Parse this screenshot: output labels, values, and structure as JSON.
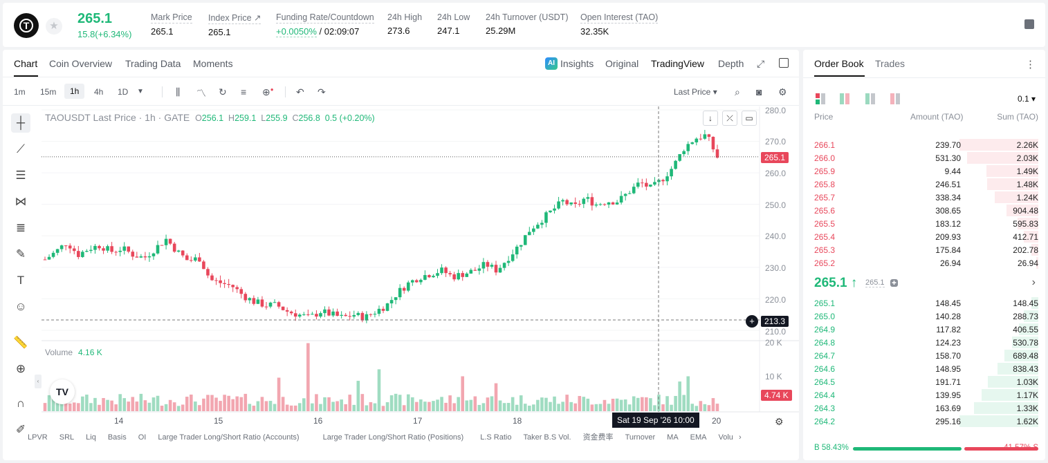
{
  "header": {
    "last_price": "265.1",
    "change": "15.8(+6.34%)",
    "stats": [
      {
        "label": "Mark Price",
        "value": "265.1",
        "x": 214
      },
      {
        "label": "Index Price ↗",
        "value": "265.1",
        "x": 297
      },
      {
        "label": "Funding Rate/Countdown",
        "value": "+0.0050% / 02:09:07",
        "x": 395
      },
      {
        "label": "24h High",
        "value": "273.6",
        "x": 556
      },
      {
        "label": "24h Low",
        "value": "247.1",
        "x": 628
      },
      {
        "label": "24h Turnover (USDT)",
        "value": "25.29M",
        "x": 698
      },
      {
        "label": "Open Interest (TAO)",
        "value": "32.35K",
        "x": 835
      }
    ],
    "funding_rate": "+0.0050%",
    "countdown": "/ 02:09:07"
  },
  "chart_tabs": [
    "Chart",
    "Coin Overview",
    "Trading Data",
    "Moments"
  ],
  "chart_view_tabs": [
    "Insights",
    "Original",
    "TradingView",
    "Depth"
  ],
  "ai_badge": "AI",
  "timeframes": [
    "1m",
    "15m",
    "1h",
    "4h",
    "1D"
  ],
  "active_timeframe": "1h",
  "price_type": "Last Price ▾",
  "symbol_info": {
    "name": "TAOUSDT Last Price · 1h · GATE",
    "o_label": "O",
    "o": "256.1",
    "h_label": "H",
    "h": "259.1",
    "l_label": "L",
    "l": "255.9",
    "c_label": "C",
    "c": "256.8",
    "chg": "0.5 (+0.20%)"
  },
  "price_axis": [
    "280.0",
    "270.0",
    "260.0",
    "250.0",
    "240.0",
    "230.0",
    "220.0",
    "210.0"
  ],
  "volume_axis": [
    "20 K",
    "10 K"
  ],
  "last_price_tag": "265.1",
  "crosshair_price_tag": "213.3",
  "volume_tag": "4.74 K",
  "volume_label": "Volume",
  "volume_value": "4.16 K",
  "x_ticks": [
    "14",
    "15",
    "16",
    "17",
    "18",
    "20"
  ],
  "crosshair_time": "Sat 19 Sep '26   10:00",
  "tv_logo": "TV",
  "indicators": [
    "LPVR",
    "SRL",
    "Liq",
    "Basis",
    "OI",
    "Large Trader Long/Short Ratio (Accounts)",
    "Large Trader Long/Short Ratio (Positions)",
    "L.S Ratio",
    "Taker B.S Vol.",
    "资金费率",
    "Turnover",
    "MA",
    "EMA",
    "Volu"
  ],
  "chart_data": {
    "type": "candlestick",
    "x_ticks": [
      "14",
      "15",
      "16",
      "17",
      "18",
      "20"
    ],
    "ylim": [
      210,
      280
    ],
    "volume_ylim": [
      0,
      20000
    ],
    "last_price": 265.1,
    "summary_closes": [
      232.5,
      235,
      238,
      234,
      236,
      237,
      235,
      236,
      234,
      233,
      236,
      239,
      235,
      232,
      233,
      226,
      225,
      224,
      221,
      219,
      218,
      218,
      216,
      215,
      214,
      216,
      215,
      214,
      215,
      214,
      216,
      218,
      222,
      225,
      227,
      228,
      229,
      227,
      228,
      229,
      231,
      229,
      233,
      237,
      242,
      245,
      248,
      251,
      249,
      252,
      250,
      251,
      251,
      254,
      257,
      255,
      258,
      262,
      268,
      271,
      272,
      265
    ]
  },
  "orderbook": {
    "tabs": [
      "Order Book",
      "Trades"
    ],
    "precision": "0.1 ▾",
    "headers": [
      "Price",
      "Amount (TAO)",
      "Sum (TAO)"
    ],
    "asks": [
      {
        "price": "266.1",
        "amount": "239.70",
        "sum": "2.26K",
        "depth": 1.0
      },
      {
        "price": "266.0",
        "amount": "531.30",
        "sum": "2.03K",
        "depth": 0.9
      },
      {
        "price": "265.9",
        "amount": "9.44",
        "sum": "1.49K",
        "depth": 0.66
      },
      {
        "price": "265.8",
        "amount": "246.51",
        "sum": "1.48K",
        "depth": 0.65
      },
      {
        "price": "265.7",
        "amount": "338.34",
        "sum": "1.24K",
        "depth": 0.55
      },
      {
        "price": "265.6",
        "amount": "308.65",
        "sum": "904.48",
        "depth": 0.4
      },
      {
        "price": "265.5",
        "amount": "183.12",
        "sum": "595.83",
        "depth": 0.26
      },
      {
        "price": "265.4",
        "amount": "209.93",
        "sum": "412.71",
        "depth": 0.18
      },
      {
        "price": "265.3",
        "amount": "175.84",
        "sum": "202.78",
        "depth": 0.09
      },
      {
        "price": "265.2",
        "amount": "26.94",
        "sum": "26.94",
        "depth": 0.012
      }
    ],
    "mid_price": "265.1 ↑",
    "mid_mark": "265.1",
    "bids": [
      {
        "price": "265.1",
        "amount": "148.45",
        "sum": "148.45",
        "depth": 0.09
      },
      {
        "price": "265.0",
        "amount": "140.28",
        "sum": "288.73",
        "depth": 0.18
      },
      {
        "price": "264.9",
        "amount": "117.82",
        "sum": "406.55",
        "depth": 0.25
      },
      {
        "price": "264.8",
        "amount": "124.23",
        "sum": "530.78",
        "depth": 0.33
      },
      {
        "price": "264.7",
        "amount": "158.70",
        "sum": "689.48",
        "depth": 0.43
      },
      {
        "price": "264.6",
        "amount": "148.95",
        "sum": "838.43",
        "depth": 0.52
      },
      {
        "price": "264.5",
        "amount": "191.71",
        "sum": "1.03K",
        "depth": 0.64
      },
      {
        "price": "264.4",
        "amount": "139.95",
        "sum": "1.17K",
        "depth": 0.72
      },
      {
        "price": "264.3",
        "amount": "163.69",
        "sum": "1.33K",
        "depth": 0.82
      },
      {
        "price": "264.2",
        "amount": "295.16",
        "sum": "1.62K",
        "depth": 1.0
      }
    ],
    "buy_ratio": "B 58.43%",
    "sell_ratio": "41.57% S",
    "buy_ratio_value": 0.5843
  },
  "colors": {
    "up": "#1fb878",
    "down": "#e8475b"
  }
}
